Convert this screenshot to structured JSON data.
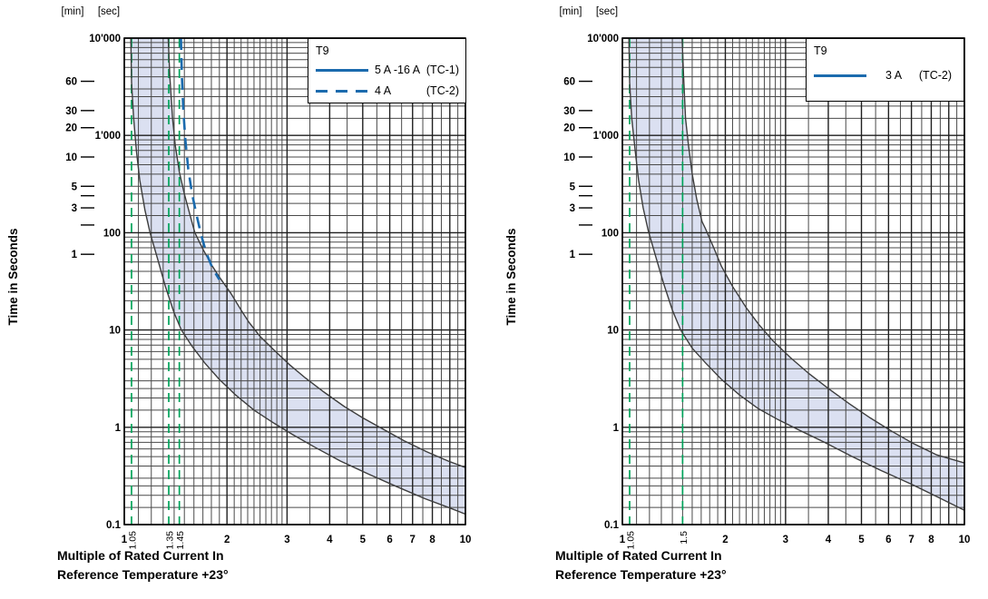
{
  "colors": {
    "accent_blue": "#1b6bae",
    "special_green": "#00a35a",
    "band_fill": "#dbe0f1",
    "curve_stroke": "#3d3d3d",
    "grid_major": "#1f1f1f",
    "grid_minor": "#4a4a4a",
    "frame": "#000000",
    "text": "#000000"
  },
  "chart_data": [
    {
      "type": "line",
      "title": "T9",
      "unit_min": "[min]",
      "unit_sec": "[sec]",
      "ylabel": "Time in Seconds",
      "xlabel_line1": "Multiple of Rated Current In",
      "xlabel_line2": "Reference Temperature +23°",
      "x_range": [
        1,
        10
      ],
      "y_range_seconds": [
        0.1,
        10000
      ],
      "x_scale": "log",
      "y_scale": "log",
      "legend": {
        "title": "T9",
        "position": "top-right",
        "entries": [
          {
            "style": "solid",
            "label_left": "5 A -16 A",
            "label_right": "(TC-1)"
          },
          {
            "style": "dashed",
            "label_left": "4 A",
            "label_right": "(TC-2)"
          }
        ]
      },
      "x_ticks": [
        {
          "v": 1,
          "label": "1"
        },
        {
          "v": 2,
          "label": "2"
        },
        {
          "v": 3,
          "label": "3"
        },
        {
          "v": 4,
          "label": "4"
        },
        {
          "v": 5,
          "label": "5"
        },
        {
          "v": 6,
          "label": "6"
        },
        {
          "v": 7,
          "label": "7"
        },
        {
          "v": 8,
          "label": "8"
        },
        {
          "v": 9,
          "label": ""
        },
        {
          "v": 10,
          "label": "10"
        }
      ],
      "x_special_ticks": [
        {
          "v": 1.05,
          "label": "1.05"
        },
        {
          "v": 1.35,
          "label": "1.35"
        },
        {
          "v": 1.45,
          "label": "1.45"
        }
      ],
      "y_ticks_sec": [
        {
          "t": 10000,
          "label": "10'000"
        },
        {
          "t": 1000,
          "label": "1'000"
        },
        {
          "t": 100,
          "label": "100"
        },
        {
          "t": 10,
          "label": "10"
        },
        {
          "t": 1,
          "label": "1"
        },
        {
          "t": 0.1,
          "label": "0.1"
        }
      ],
      "min_scale": [
        {
          "min": 60,
          "label": "60"
        },
        {
          "min": 30,
          "label": "30"
        },
        {
          "min": 20,
          "label": "20"
        },
        {
          "min": 10,
          "label": "10"
        },
        {
          "min": 5,
          "label": "5"
        },
        {
          "min": 4,
          "label": ""
        },
        {
          "min": 3,
          "label": "3"
        },
        {
          "min": 2,
          "label": ""
        },
        {
          "min": 1,
          "label": "1"
        }
      ],
      "band_lower": [
        [
          1.045,
          10000
        ],
        [
          1.05,
          3500
        ],
        [
          1.065,
          1500
        ],
        [
          1.085,
          700
        ],
        [
          1.11,
          350
        ],
        [
          1.15,
          170
        ],
        [
          1.19,
          100
        ],
        [
          1.25,
          55
        ],
        [
          1.32,
          28
        ],
        [
          1.4,
          15
        ],
        [
          1.47,
          10
        ],
        [
          1.58,
          6.8
        ],
        [
          1.72,
          4.6
        ],
        [
          1.9,
          3.1
        ],
        [
          2.12,
          2.15
        ],
        [
          2.4,
          1.5
        ],
        [
          2.75,
          1.1
        ],
        [
          3.1,
          0.85
        ],
        [
          3.6,
          0.63
        ],
        [
          4.3,
          0.45
        ],
        [
          5.2,
          0.33
        ],
        [
          6.3,
          0.245
        ],
        [
          7.6,
          0.185
        ],
        [
          9.0,
          0.148
        ],
        [
          10,
          0.128
        ]
      ],
      "band_upper": [
        [
          1.345,
          10000
        ],
        [
          1.36,
          4000
        ],
        [
          1.385,
          1500
        ],
        [
          1.41,
          800
        ],
        [
          1.45,
          420
        ],
        [
          1.5,
          250
        ],
        [
          1.56,
          150
        ],
        [
          1.61,
          100
        ],
        [
          1.7,
          68
        ],
        [
          1.8,
          47
        ],
        [
          1.9,
          35
        ],
        [
          2.05,
          24
        ],
        [
          2.2,
          16
        ],
        [
          2.32,
          12
        ],
        [
          2.5,
          8.6
        ],
        [
          2.75,
          6.2
        ],
        [
          3.05,
          4.4
        ],
        [
          3.4,
          3.2
        ],
        [
          3.85,
          2.3
        ],
        [
          4.4,
          1.65
        ],
        [
          5.0,
          1.25
        ],
        [
          5.7,
          0.97
        ],
        [
          6.6,
          0.73
        ],
        [
          7.7,
          0.56
        ],
        [
          8.9,
          0.45
        ],
        [
          10,
          0.385
        ]
      ],
      "dashed_curve": [
        [
          1.465,
          10000
        ],
        [
          1.475,
          4000
        ],
        [
          1.49,
          1800
        ],
        [
          1.51,
          900
        ],
        [
          1.54,
          450
        ],
        [
          1.58,
          250
        ],
        [
          1.63,
          150
        ],
        [
          1.68,
          95
        ],
        [
          1.74,
          62
        ],
        [
          1.82,
          42
        ],
        [
          1.9,
          33
        ]
      ]
    },
    {
      "type": "line",
      "title": "T9",
      "unit_min": "[min]",
      "unit_sec": "[sec]",
      "ylabel": "Time in Seconds",
      "xlabel_line1": "Multiple of Rated Current In",
      "xlabel_line2": "Reference Temperature +23°",
      "x_range": [
        1,
        10
      ],
      "y_range_seconds": [
        0.1,
        10000
      ],
      "x_scale": "log",
      "y_scale": "log",
      "legend": {
        "title": "T9",
        "position": "top-right",
        "entries": [
          {
            "style": "solid",
            "label_left": "3  A",
            "label_right": "(TC-2)"
          }
        ]
      },
      "x_ticks": [
        {
          "v": 1,
          "label": "1"
        },
        {
          "v": 2,
          "label": "2"
        },
        {
          "v": 3,
          "label": "3"
        },
        {
          "v": 4,
          "label": "4"
        },
        {
          "v": 5,
          "label": "5"
        },
        {
          "v": 6,
          "label": "6"
        },
        {
          "v": 7,
          "label": "7"
        },
        {
          "v": 8,
          "label": "8"
        },
        {
          "v": 9,
          "label": ""
        },
        {
          "v": 10,
          "label": "10"
        }
      ],
      "x_special_ticks": [
        {
          "v": 1.05,
          "label": "1.05"
        },
        {
          "v": 1.5,
          "label": "1.5"
        }
      ],
      "y_ticks_sec": [
        {
          "t": 10000,
          "label": "10'000"
        },
        {
          "t": 1000,
          "label": "1'000"
        },
        {
          "t": 100,
          "label": "100"
        },
        {
          "t": 10,
          "label": "10"
        },
        {
          "t": 1,
          "label": "1"
        },
        {
          "t": 0.1,
          "label": "0.1"
        }
      ],
      "min_scale": [
        {
          "min": 60,
          "label": "60"
        },
        {
          "min": 30,
          "label": "30"
        },
        {
          "min": 20,
          "label": "20"
        },
        {
          "min": 10,
          "label": "10"
        },
        {
          "min": 5,
          "label": "5"
        },
        {
          "min": 4,
          "label": ""
        },
        {
          "min": 3,
          "label": "3"
        },
        {
          "min": 2,
          "label": ""
        },
        {
          "min": 1,
          "label": "1"
        }
      ],
      "band_lower": [
        [
          1.045,
          10000
        ],
        [
          1.05,
          3500
        ],
        [
          1.065,
          1500
        ],
        [
          1.09,
          700
        ],
        [
          1.115,
          350
        ],
        [
          1.15,
          180
        ],
        [
          1.19,
          105
        ],
        [
          1.25,
          58
        ],
        [
          1.32,
          30
        ],
        [
          1.4,
          16
        ],
        [
          1.48,
          10
        ],
        [
          1.6,
          6.5
        ],
        [
          1.75,
          4.6
        ],
        [
          1.95,
          3.1
        ],
        [
          2.2,
          2.15
        ],
        [
          2.5,
          1.55
        ],
        [
          2.85,
          1.2
        ],
        [
          3.3,
          0.93
        ],
        [
          3.9,
          0.7
        ],
        [
          4.7,
          0.5
        ],
        [
          5.7,
          0.36
        ],
        [
          7.0,
          0.26
        ],
        [
          8.4,
          0.19
        ],
        [
          10,
          0.14
        ]
      ],
      "band_upper": [
        [
          1.495,
          10000
        ],
        [
          1.51,
          4000
        ],
        [
          1.53,
          1500
        ],
        [
          1.56,
          800
        ],
        [
          1.6,
          400
        ],
        [
          1.65,
          220
        ],
        [
          1.71,
          130
        ],
        [
          1.75,
          110
        ],
        [
          1.85,
          70
        ],
        [
          1.95,
          45
        ],
        [
          2.1,
          28
        ],
        [
          2.3,
          17
        ],
        [
          2.5,
          11.5
        ],
        [
          2.75,
          7.8
        ],
        [
          3.1,
          5.2
        ],
        [
          3.5,
          3.6
        ],
        [
          4.0,
          2.5
        ],
        [
          4.6,
          1.75
        ],
        [
          5.3,
          1.25
        ],
        [
          6.1,
          0.92
        ],
        [
          7.1,
          0.68
        ],
        [
          8.3,
          0.52
        ],
        [
          10,
          0.43
        ]
      ],
      "dashed_curve": null
    }
  ]
}
